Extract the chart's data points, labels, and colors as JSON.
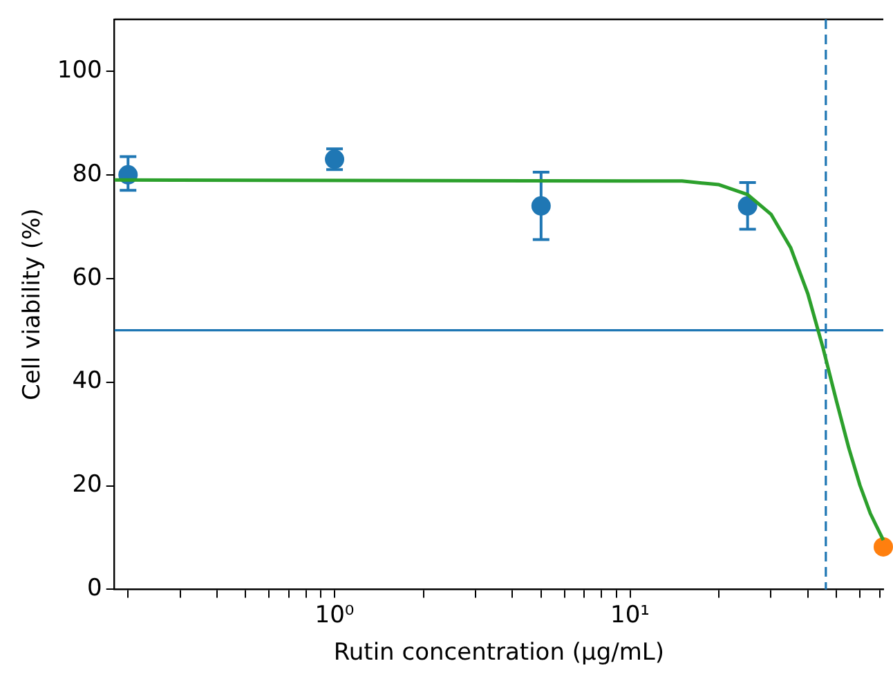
{
  "chart_data": {
    "type": "scatter",
    "xlabel": "Rutin concentration (µg/mL)",
    "ylabel": "Cell viability (%)",
    "log": "x",
    "xlim": [
      0.18,
      72
    ],
    "ylim": [
      0,
      110
    ],
    "xticks": [
      {
        "value": 0.2,
        "label": null
      },
      {
        "value": 0.3,
        "label": null
      },
      {
        "value": 0.4,
        "label": null
      },
      {
        "value": 0.5,
        "label": null
      },
      {
        "value": 0.6,
        "label": null
      },
      {
        "value": 0.7,
        "label": null
      },
      {
        "value": 0.8,
        "label": null
      },
      {
        "value": 0.9,
        "label": null
      },
      {
        "value": 1,
        "label": "10⁰"
      },
      {
        "value": 2,
        "label": null
      },
      {
        "value": 3,
        "label": null
      },
      {
        "value": 4,
        "label": null
      },
      {
        "value": 5,
        "label": null
      },
      {
        "value": 6,
        "label": null
      },
      {
        "value": 7,
        "label": null
      },
      {
        "value": 8,
        "label": null
      },
      {
        "value": 9,
        "label": null
      },
      {
        "value": 10,
        "label": "10¹"
      },
      {
        "value": 20,
        "label": null
      },
      {
        "value": 30,
        "label": null
      },
      {
        "value": 40,
        "label": null
      },
      {
        "value": 50,
        "label": null
      },
      {
        "value": 60,
        "label": null
      },
      {
        "value": 70,
        "label": null
      }
    ],
    "yticks": [
      0,
      20,
      40,
      60,
      80,
      100
    ],
    "grid": false,
    "legend": false,
    "series": [
      {
        "type": "line",
        "color": "#2ca02c",
        "marker": "none",
        "line_style": "solid",
        "x": [
          0.18,
          10,
          15,
          20,
          25,
          30,
          35,
          40,
          45,
          50,
          55,
          60,
          65,
          72
        ],
        "values": [
          79,
          78.8,
          78.8,
          78.1,
          76.2,
          72.4,
          65.9,
          57,
          46.6,
          36.3,
          27.3,
          20.1,
          14.7,
          9.5
        ]
      },
      {
        "type": "scatter",
        "color": "#1f77b4",
        "marker": "circle",
        "x": [
          0.2,
          1,
          5,
          25
        ],
        "values": [
          80,
          83,
          74,
          74
        ],
        "errors": [
          [
            77,
            83.5
          ],
          [
            81,
            85
          ],
          [
            67.5,
            80.5
          ],
          [
            69.5,
            78.5
          ]
        ]
      },
      {
        "type": "scatter",
        "color": "#ff7f0e",
        "marker": "circle",
        "x": [
          72
        ],
        "values": [
          8.2
        ]
      }
    ],
    "ref_lines": [
      {
        "axis": "y",
        "value": 50,
        "color": "#1f77b4",
        "line_style": "solid"
      },
      {
        "axis": "x",
        "value": 46,
        "color": "#1f77b4",
        "line_style": "dashed"
      }
    ]
  }
}
